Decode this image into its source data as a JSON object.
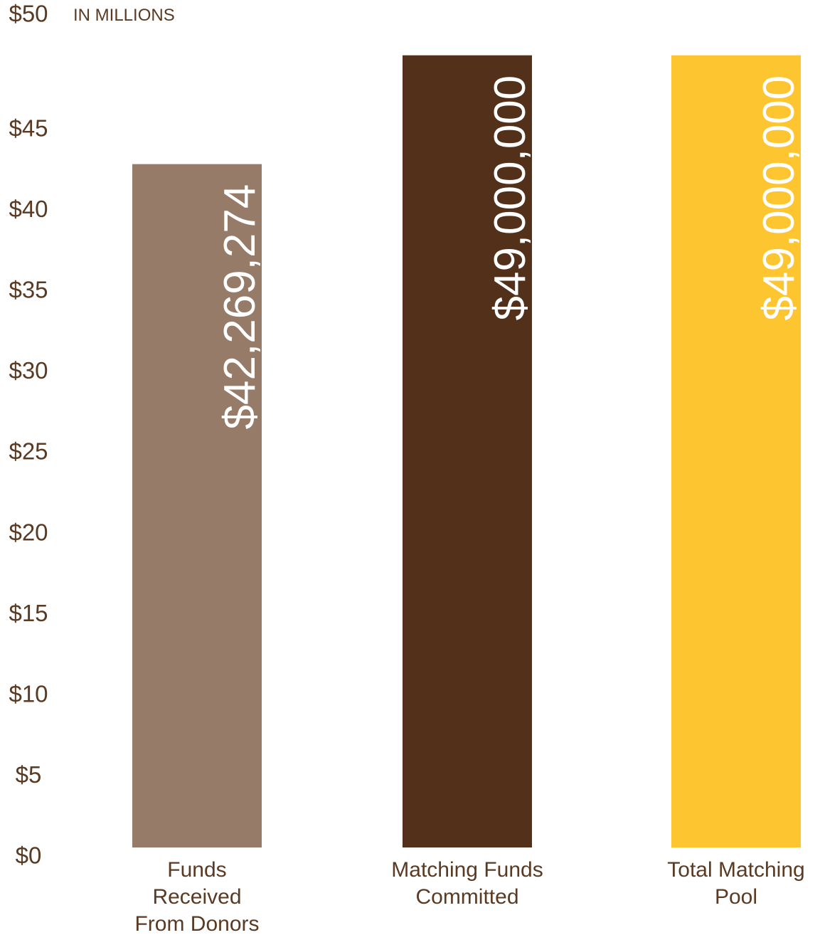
{
  "chart_data": {
    "type": "bar",
    "unit_label": "IN MILLIONS",
    "ylim": [
      0,
      50
    ],
    "y_ticks": [
      0,
      5,
      10,
      15,
      20,
      25,
      30,
      35,
      40,
      45,
      50
    ],
    "y_tick_labels": [
      "$0",
      "$5",
      "$10",
      "$15",
      "$20",
      "$25",
      "$30",
      "$35",
      "$40",
      "$45",
      "$50"
    ],
    "categories": [
      [
        "Funds",
        "Received",
        "From Donors"
      ],
      [
        "Matching Funds",
        "Committed"
      ],
      [
        "Total Matching",
        "Pool"
      ]
    ],
    "values": [
      42.269274,
      49,
      49
    ],
    "value_labels": [
      "$42,269,274",
      "$49,000,000",
      "$49,000,000"
    ],
    "colors": [
      "#967b69",
      "#53301a",
      "#fdc52f"
    ],
    "grid": false,
    "legend": "none"
  }
}
